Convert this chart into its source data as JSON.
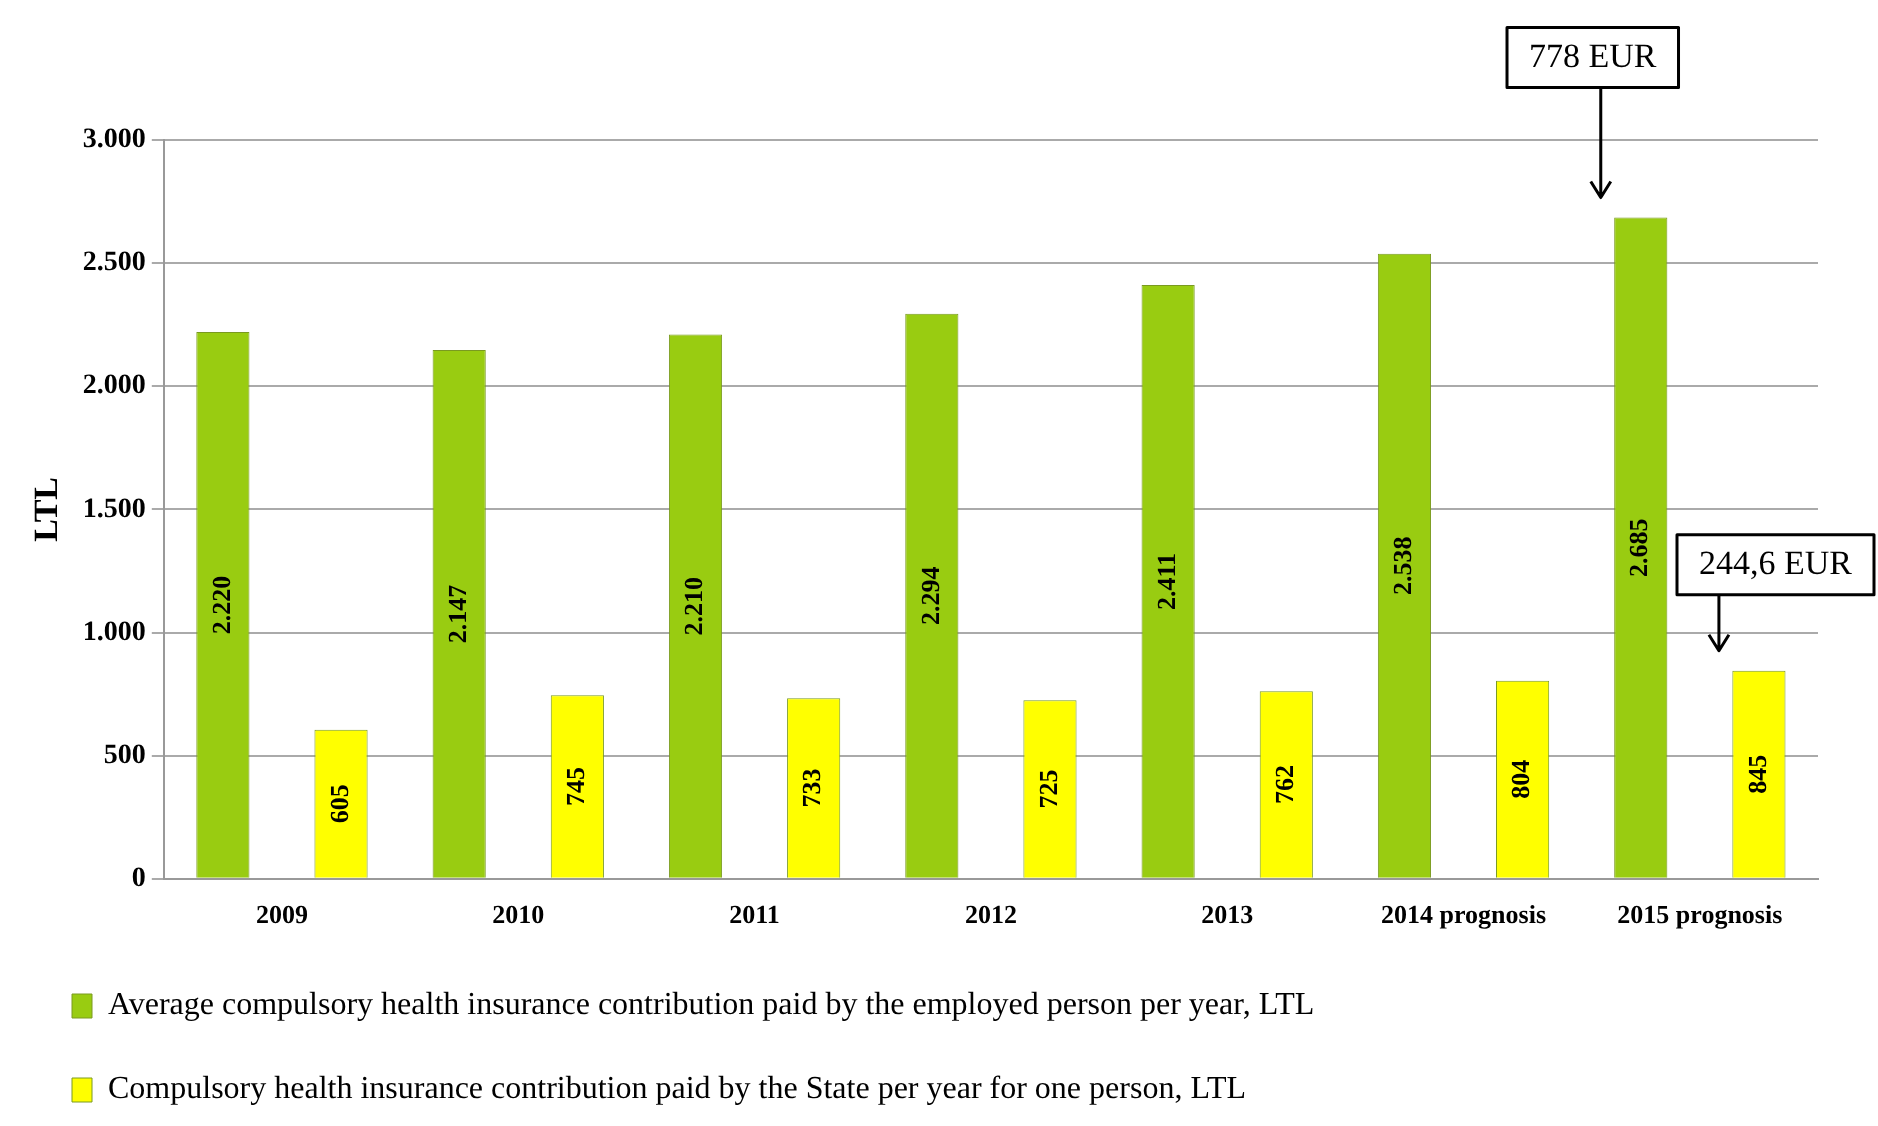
{
  "chart_data": {
    "type": "bar",
    "ylabel": "LTL",
    "categories": [
      "2009",
      "2010",
      "2011",
      "2012",
      "2013",
      "2014 prognosis",
      "2015 prognosis"
    ],
    "series": [
      {
        "name": "Average compulsory health insurance contribution paid by the employed person per year, LTL",
        "color": "#99cc11",
        "values": [
          2220,
          2147,
          2210,
          2294,
          2411,
          2538,
          2685
        ],
        "value_labels": [
          "2.220",
          "2.147",
          "2.210",
          "2.294",
          "2.411",
          "2.538",
          "2.685"
        ]
      },
      {
        "name": "Compulsory health insurance contribution paid by the State per year for one person, LTL",
        "color": "#ffff00",
        "values": [
          605,
          745,
          733,
          725,
          762,
          804,
          845
        ],
        "value_labels": [
          "605",
          "745",
          "733",
          "725",
          "762",
          "804",
          "845"
        ]
      }
    ],
    "ylim": [
      0,
      3000
    ],
    "yticks": [
      {
        "value": 0,
        "label": "0"
      },
      {
        "value": 500,
        "label": "500"
      },
      {
        "value": 1000,
        "label": "1.000"
      },
      {
        "value": 1500,
        "label": "1.500"
      },
      {
        "value": 2000,
        "label": "2.000"
      },
      {
        "value": 2500,
        "label": "2.500"
      },
      {
        "value": 3000,
        "label": "3.000"
      }
    ],
    "grid": "y",
    "legend": "bottom",
    "annotations": [
      "778 EUR",
      "244,6 EUR"
    ]
  }
}
